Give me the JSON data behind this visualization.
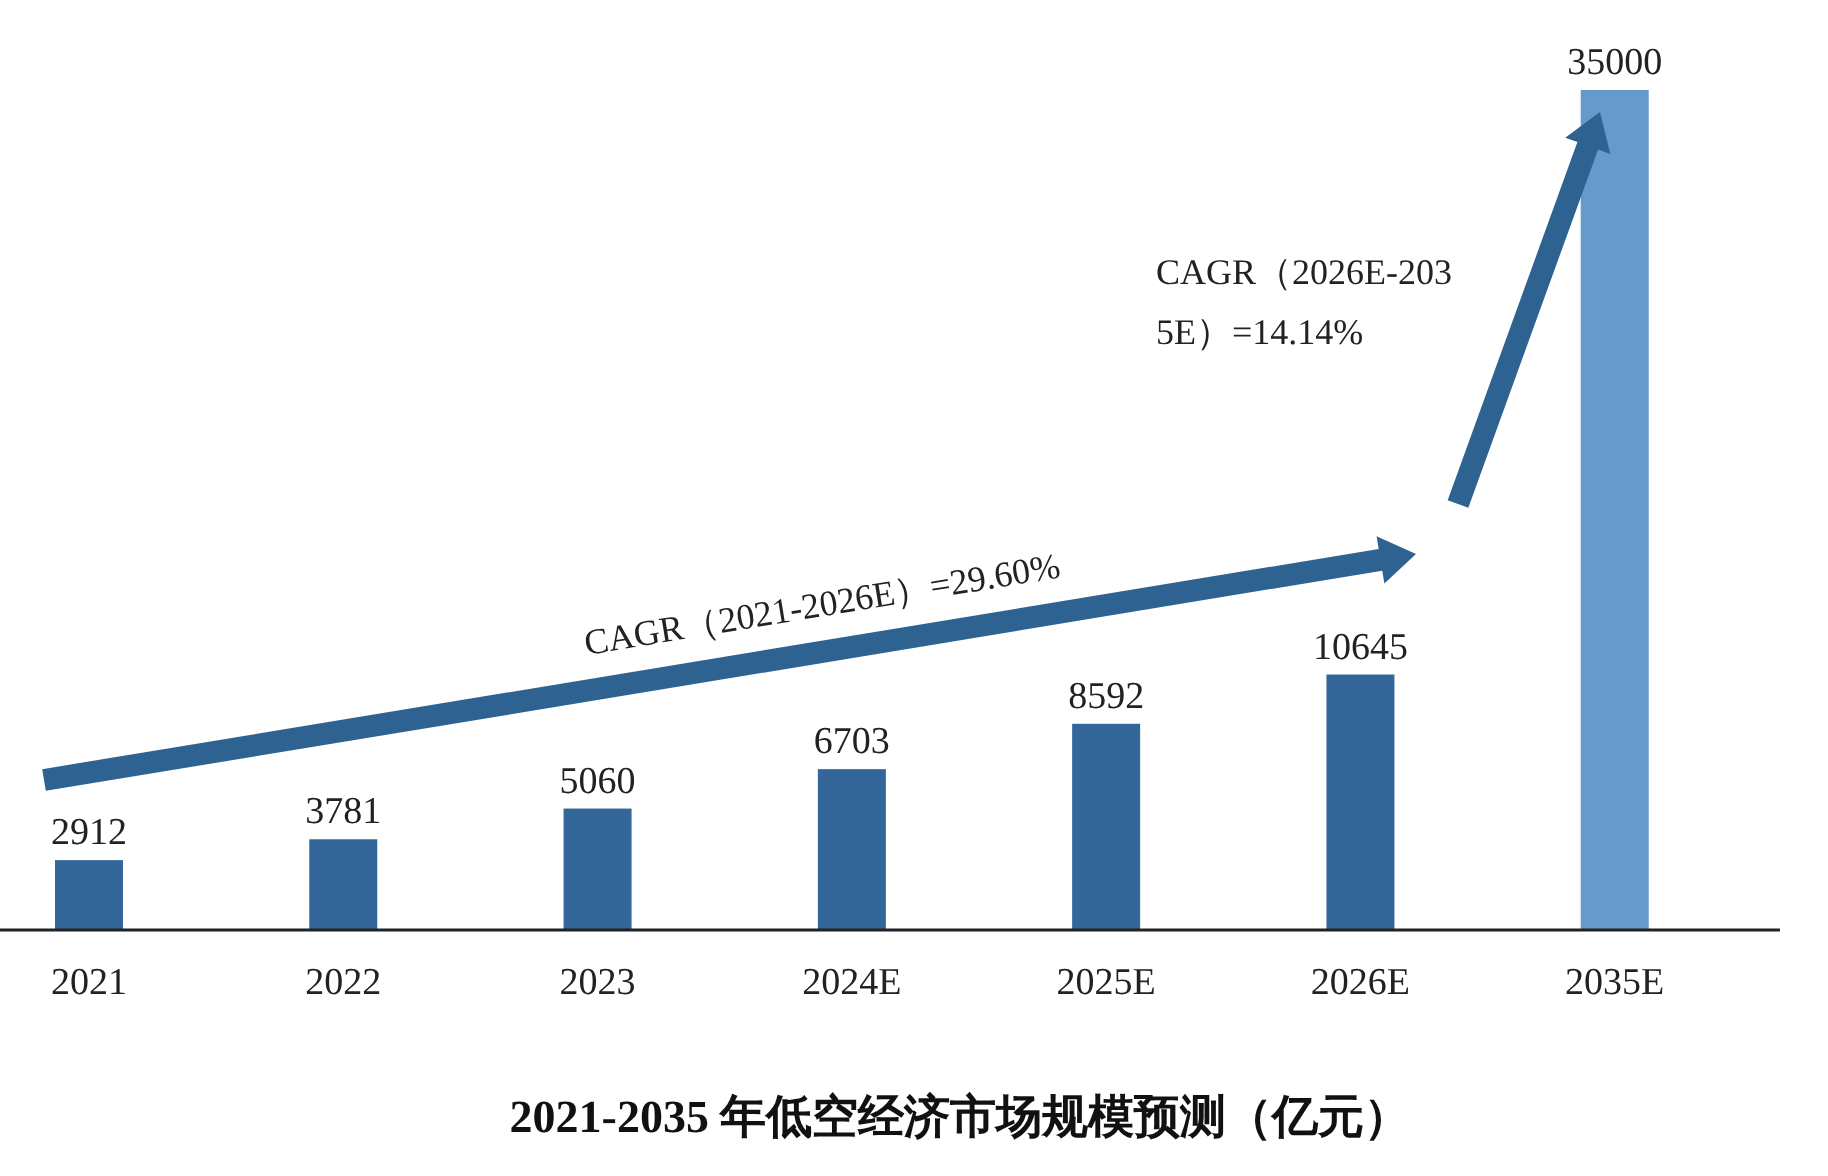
{
  "chart_data": {
    "type": "bar",
    "title": "2021-2035 年低空经济市场规模预测（亿元）",
    "categories": [
      "2021",
      "2022",
      "2023",
      "2024E",
      "2025E",
      "2026E",
      "2035E"
    ],
    "values": [
      2912,
      3781,
      5060,
      6703,
      8592,
      10645,
      35000
    ],
    "colors": [
      "#336699",
      "#336699",
      "#336699",
      "#336699",
      "#336699",
      "#336699",
      "#6699cc"
    ],
    "data_labels": true,
    "annotations": [
      "CAGR（2021-2026E）=29.60%",
      "CAGR（2026E-2035E）=14.14%"
    ]
  }
}
